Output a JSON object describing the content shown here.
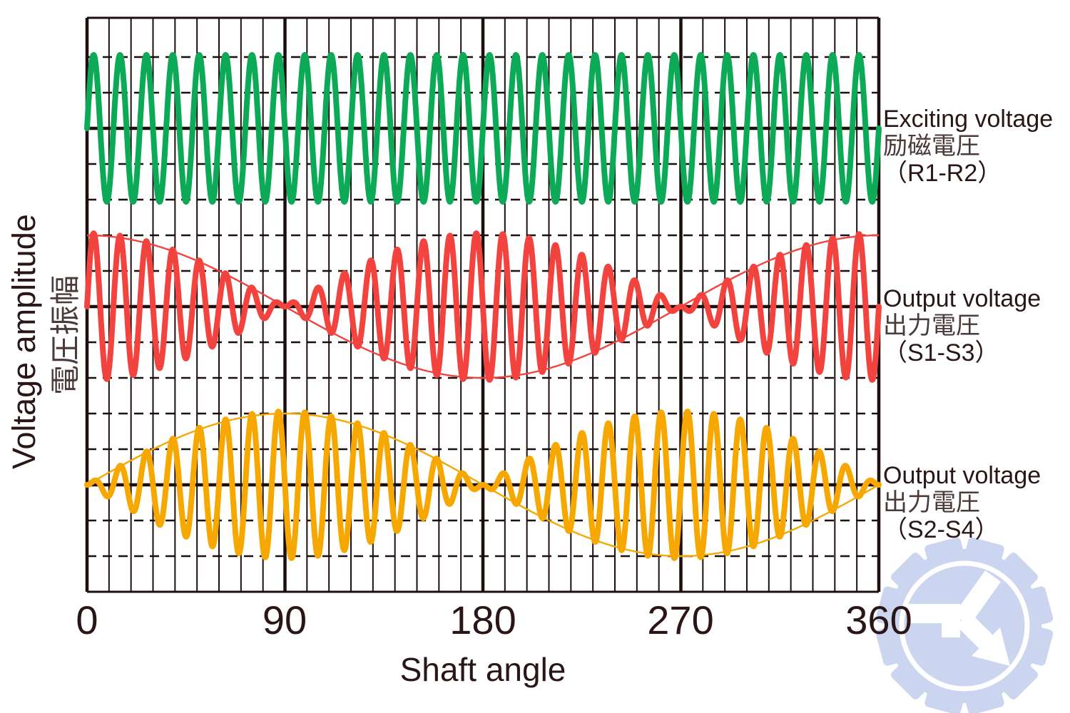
{
  "figure": {
    "name": "resolver-signal-waveforms",
    "background": "#ffffff"
  },
  "colors": {
    "grid": "#1e0f0f",
    "text": "#2a1616",
    "exciting_green": "#0caa57",
    "output_red": "#f2433e",
    "output_yellow": "#f7a800",
    "watermark_blue": "#ccd5ef",
    "watermark_white": "#ffffff"
  },
  "watermark": {
    "name": "gear-K-arrow-logo",
    "color": "#ccd5ef"
  },
  "chart_data": {
    "type": "line",
    "xlabel": "Shaft angle",
    "ylabel_en": "Voltage amplitude",
    "ylabel_jp": "電圧振幅",
    "x_range_deg": [
      0,
      360
    ],
    "x_ticks": [
      "0",
      "90",
      "180",
      "270",
      "360"
    ],
    "x_major_step_deg": 90,
    "x_minor_step_deg": 10,
    "carrier_cycles_per_360deg": 30,
    "grid": {
      "vertical_lines": "solid, every 10 deg, thick every 90 deg",
      "horizontal_lines": "dashed at ±0.5 and ±1.0 of each band amplitude, solid zero line per band",
      "dashed_offsets_per_band": [
        -1.0,
        -0.5,
        0.5,
        1.0
      ]
    },
    "series": [
      {
        "id": "exciting-voltage",
        "name": "Exciting voltage (R1-R2)",
        "label_lines": [
          "Exciting voltage",
          "励磁電圧",
          "（R1-R2）"
        ],
        "color": "#0caa57",
        "band": 0,
        "modulation": "none",
        "envelope_shown": false,
        "formula": "sin(carrier)"
      },
      {
        "id": "output-voltage-s1-s3",
        "name": "Output voltage (S1-S3)",
        "label_lines": [
          "Output voltage",
          "出力電圧",
          "（S1-S3）"
        ],
        "color": "#f2433e",
        "band": 1,
        "modulation": "cos",
        "envelope_shown": true,
        "formula": "cos(theta) * sin(carrier)"
      },
      {
        "id": "output-voltage-s2-s4",
        "name": "Output voltage (S2-S4)",
        "label_lines": [
          "Output voltage",
          "出力電圧",
          "（S2-S4）"
        ],
        "color": "#f7a800",
        "band": 2,
        "modulation": "sin",
        "envelope_shown": true,
        "formula": "sin(theta) * sin(carrier)"
      }
    ]
  }
}
